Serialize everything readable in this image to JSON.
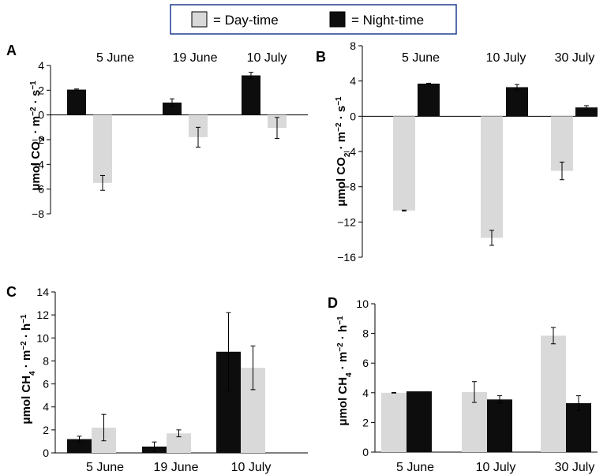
{
  "legend": {
    "items": [
      {
        "label": "= Day-time",
        "color": "#d9d9d9"
      },
      {
        "label": "= Night-time",
        "color": "#0d0d0d"
      }
    ]
  },
  "ylabels": {
    "co2": {
      "prefix": "μmol CO",
      "sub": "2",
      "mid1": " · m",
      "sup1": "−2",
      "mid2": " · s",
      "sup2": "−1"
    },
    "ch4": {
      "prefix": "μmol CH",
      "sub": "4",
      "mid1": " · m",
      "sup1": "−2",
      "mid2": " · h",
      "sup2": "−1"
    }
  },
  "chart_data": [
    {
      "panel": "A",
      "type": "bar",
      "categories": [
        "5 June",
        "19 June",
        "10 July"
      ],
      "category_position": "top",
      "ylim": [
        -8,
        4
      ],
      "yticks": [
        4,
        2,
        0,
        -2,
        -4,
        -6,
        -8
      ],
      "series": [
        {
          "name": "Night-time",
          "values": [
            2.05,
            1.0,
            3.2
          ],
          "errors": [
            0.05,
            0.3,
            0.25
          ]
        },
        {
          "name": "Day-time",
          "values": [
            -5.5,
            -1.8,
            -1.05
          ],
          "errors": [
            0.6,
            0.8,
            0.85
          ]
        }
      ]
    },
    {
      "panel": "B",
      "type": "bar",
      "categories": [
        "5 June",
        "10 July",
        "30 July"
      ],
      "category_position": "top",
      "ylim": [
        -16,
        8
      ],
      "yticks": [
        8,
        4,
        0,
        -4,
        -8,
        -12,
        -16
      ],
      "series": [
        {
          "name": "Day-time",
          "values": [
            -10.7,
            -13.8,
            -6.2
          ],
          "errors": [
            0.05,
            0.85,
            1.0
          ]
        },
        {
          "name": "Night-time",
          "values": [
            3.7,
            3.3,
            1.0
          ],
          "errors": [
            0.05,
            0.3,
            0.2
          ]
        }
      ]
    },
    {
      "panel": "C",
      "type": "bar",
      "categories": [
        "5 June",
        "19 June",
        "10 July"
      ],
      "category_position": "bottom",
      "ylim": [
        0,
        14
      ],
      "yticks": [
        14,
        12,
        10,
        8,
        6,
        4,
        2,
        0
      ],
      "series": [
        {
          "name": "Night-time",
          "values": [
            1.2,
            0.55,
            8.8
          ],
          "errors": [
            0.25,
            0.4,
            3.4
          ]
        },
        {
          "name": "Day-time",
          "values": [
            2.2,
            1.7,
            7.4
          ],
          "errors": [
            1.15,
            0.3,
            1.9
          ]
        }
      ]
    },
    {
      "panel": "D",
      "type": "bar",
      "categories": [
        "5 June",
        "10 July",
        "30 July"
      ],
      "category_position": "bottom",
      "ylim": [
        0,
        10
      ],
      "yticks": [
        10,
        8,
        6,
        4,
        2,
        0
      ],
      "series": [
        {
          "name": "Day-time",
          "values": [
            4.0,
            4.05,
            7.85
          ],
          "errors": [
            0.02,
            0.7,
            0.55
          ]
        },
        {
          "name": "Night-time",
          "values": [
            4.1,
            3.55,
            3.3
          ],
          "errors": [
            0.0,
            0.25,
            0.5
          ]
        }
      ]
    }
  ]
}
